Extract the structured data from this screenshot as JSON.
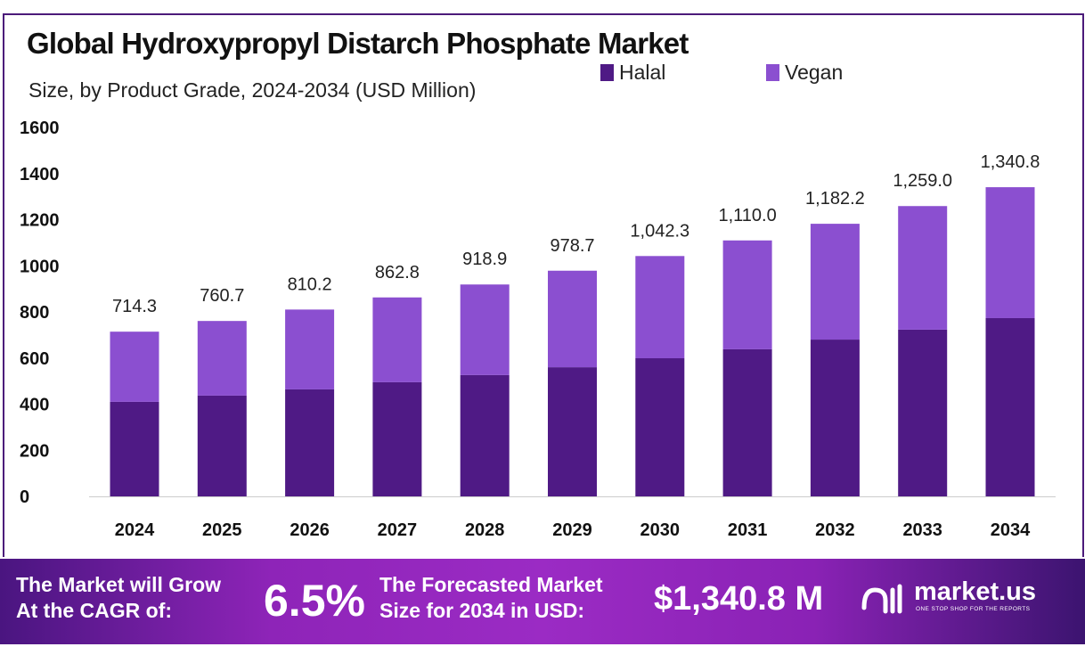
{
  "title": "Global Hydroxypropyl Distarch Phosphate Market",
  "subtitle": "Size, by Product Grade, 2024-2034 (USD Million)",
  "colors": {
    "halal": "#4f1a85",
    "vegan": "#8b4fd0",
    "frame": "#4b1a7a"
  },
  "chart_data": {
    "type": "bar",
    "stacked": true,
    "title": "Global Hydroxypropyl Distarch Phosphate Market",
    "subtitle": "Size, by Product Grade, 2024-2034 (USD Million)",
    "categories": [
      "2024",
      "2025",
      "2026",
      "2027",
      "2028",
      "2029",
      "2030",
      "2031",
      "2032",
      "2033",
      "2034"
    ],
    "series": [
      {
        "name": "Halal",
        "values": [
          410,
          437,
          464,
          495,
          526,
          560,
          599,
          638,
          680,
          723,
          773
        ]
      },
      {
        "name": "Vegan",
        "values": [
          304.3,
          323.7,
          346.2,
          367.8,
          392.9,
          418.7,
          443.3,
          472.0,
          502.2,
          536.0,
          567.8
        ]
      }
    ],
    "totals": [
      "714.3",
      "760.7",
      "810.2",
      "862.8",
      "918.9",
      "978.7",
      "1,042.3",
      "1,110.0",
      "1,182.2",
      "1,259.0",
      "1,340.8"
    ],
    "yticks": [
      "0",
      "200",
      "400",
      "600",
      "800",
      "1000",
      "1200",
      "1400",
      "1600"
    ],
    "ylim": [
      0,
      1600
    ],
    "legend_position": "top",
    "grid": false
  },
  "footer": {
    "cagr_label_1": "The Market will Grow",
    "cagr_label_2": "At the CAGR of:",
    "cagr_value": "6.5%",
    "forecast_label_1": "The Forecasted Market",
    "forecast_label_2": "Size for 2034 in USD:",
    "forecast_value": "$1,340.8 M",
    "brand": "market.us",
    "tagline": "ONE STOP SHOP FOR THE REPORTS"
  }
}
